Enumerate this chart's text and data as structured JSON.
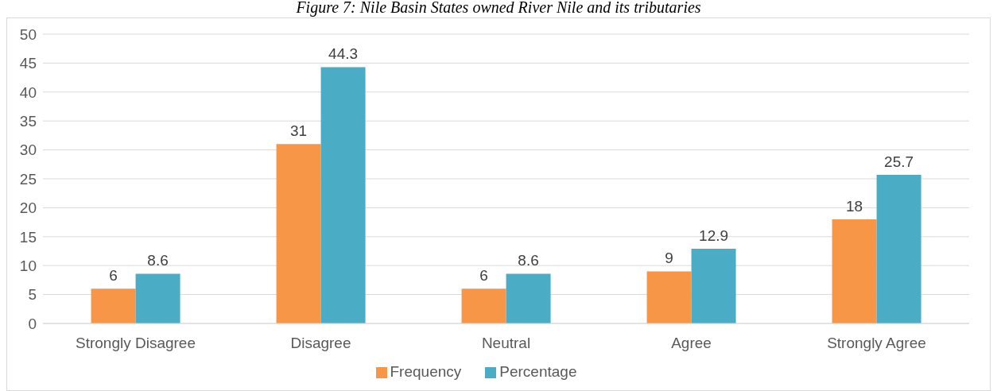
{
  "chart_data": {
    "type": "bar",
    "title": "Figure 7: Nile Basin States owned River Nile and its tributaries",
    "categories": [
      "Strongly Disagree",
      "Disagree",
      "Neutral",
      "Agree",
      "Strongly Agree"
    ],
    "series": [
      {
        "name": "Frequency",
        "color": "#f79646",
        "values": [
          6,
          31,
          6,
          9,
          18
        ]
      },
      {
        "name": "Percentage",
        "color": "#4bacc6",
        "values": [
          8.6,
          44.3,
          8.6,
          12.9,
          25.7
        ]
      }
    ],
    "ylim": [
      0,
      50
    ],
    "yticks": [
      0,
      5,
      10,
      15,
      20,
      25,
      30,
      35,
      40,
      45,
      50
    ],
    "grid": "y",
    "legend": "bottom",
    "data_labels": true
  }
}
